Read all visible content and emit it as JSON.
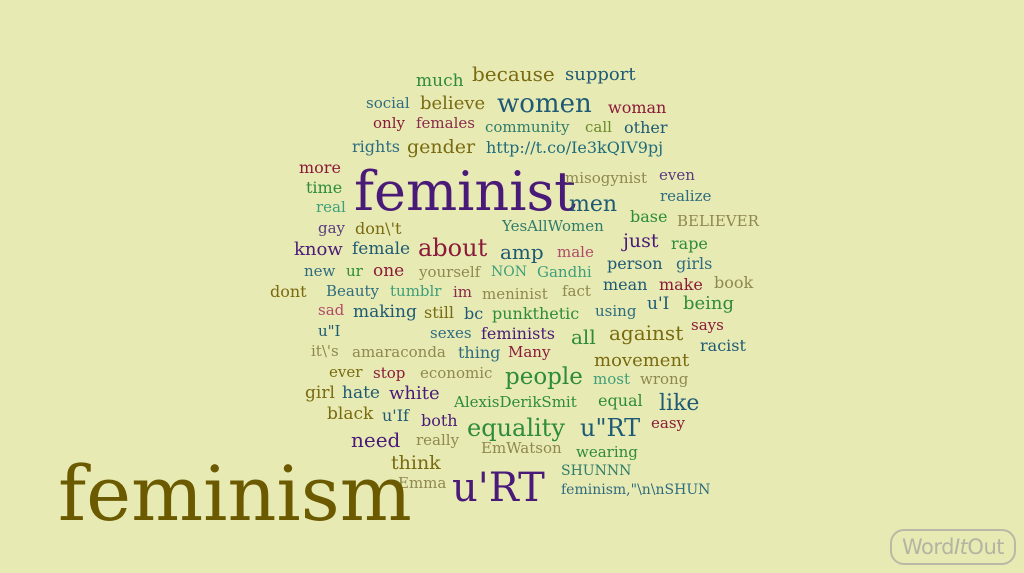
{
  "title": "feminism",
  "logo": {
    "part1": "Word",
    "part2": "It",
    "part3": "Out"
  },
  "colors": {
    "background": "#e7eab3",
    "purple": "#4a1a78",
    "teal": "#1e5a74",
    "green": "#2e8b3a",
    "olive": "#7a6a10",
    "crimson": "#8b1a3a",
    "tan": "#8f8850"
  },
  "words": [
    {
      "text": "much",
      "size": 17,
      "color": "#2e8b3a"
    },
    {
      "text": "because",
      "size": 20,
      "color": "#7a6a10"
    },
    {
      "text": "support",
      "size": 18,
      "color": "#1e5a74"
    },
    {
      "text": "social",
      "size": 15,
      "color": "#2f6c80"
    },
    {
      "text": "believe",
      "size": 18,
      "color": "#7a6a10"
    },
    {
      "text": "women",
      "size": 26,
      "color": "#1e5a74"
    },
    {
      "text": "woman",
      "size": 16,
      "color": "#8b1a3a"
    },
    {
      "text": "only",
      "size": 15,
      "color": "#8b1a3a"
    },
    {
      "text": "females",
      "size": 15,
      "color": "#8b2a4a"
    },
    {
      "text": "community",
      "size": 15,
      "color": "#2f7c6a"
    },
    {
      "text": "call",
      "size": 15,
      "color": "#6a8a2a"
    },
    {
      "text": "other",
      "size": 16,
      "color": "#1e5a74"
    },
    {
      "text": "rights",
      "size": 16,
      "color": "#2f6c80"
    },
    {
      "text": "gender",
      "size": 19,
      "color": "#7a6a10"
    },
    {
      "text": "http://t.co/Ie3kQIV9pj",
      "size": 16,
      "color": "#1e6c7c"
    },
    {
      "text": "more",
      "size": 16,
      "color": "#8b1a3a"
    },
    {
      "text": "time",
      "size": 16,
      "color": "#2e8b3a"
    },
    {
      "text": "real",
      "size": 15,
      "color": "#3f9f7a"
    },
    {
      "text": "feminist",
      "size": 54,
      "color": "#4a1a78"
    },
    {
      "text": "misogynist",
      "size": 15,
      "color": "#8f8850"
    },
    {
      "text": "even",
      "size": 15,
      "color": "#5a3a80"
    },
    {
      "text": "realize",
      "size": 15,
      "color": "#2f6c80"
    },
    {
      "text": "men",
      "size": 22,
      "color": "#1e5a74"
    },
    {
      "text": "gay",
      "size": 15,
      "color": "#5a3a80"
    },
    {
      "text": "don\\'t",
      "size": 16,
      "color": "#7a6a10"
    },
    {
      "text": "YesAllWomen",
      "size": 15,
      "color": "#2f7c6a"
    },
    {
      "text": "base",
      "size": 16,
      "color": "#2e8b3a"
    },
    {
      "text": "BELIEVER",
      "size": 15,
      "color": "#8f8850"
    },
    {
      "text": "know",
      "size": 18,
      "color": "#4a1a78"
    },
    {
      "text": "female",
      "size": 17,
      "color": "#1e5a74"
    },
    {
      "text": "about",
      "size": 24,
      "color": "#8b1a3a"
    },
    {
      "text": "amp",
      "size": 20,
      "color": "#1e5a74"
    },
    {
      "text": "male",
      "size": 15,
      "color": "#b04a6a"
    },
    {
      "text": "just",
      "size": 19,
      "color": "#4a1a78"
    },
    {
      "text": "rape",
      "size": 16,
      "color": "#2e8b3a"
    },
    {
      "text": "new",
      "size": 15,
      "color": "#2f6c80"
    },
    {
      "text": "ur",
      "size": 15,
      "color": "#2e8b3a"
    },
    {
      "text": "one",
      "size": 17,
      "color": "#8b1a3a"
    },
    {
      "text": "yourself",
      "size": 15,
      "color": "#8f8850"
    },
    {
      "text": "NON",
      "size": 14,
      "color": "#3f9f7a"
    },
    {
      "text": "Gandhi",
      "size": 15,
      "color": "#3f9f7a"
    },
    {
      "text": "person",
      "size": 16,
      "color": "#1e5a74"
    },
    {
      "text": "girls",
      "size": 16,
      "color": "#2f6c80"
    },
    {
      "text": "dont",
      "size": 16,
      "color": "#7a6a10"
    },
    {
      "text": "Beauty",
      "size": 15,
      "color": "#2f6c80"
    },
    {
      "text": "tumblr",
      "size": 15,
      "color": "#3f9f7a"
    },
    {
      "text": "im",
      "size": 15,
      "color": "#8b2a4a"
    },
    {
      "text": "meninist",
      "size": 15,
      "color": "#8f8850"
    },
    {
      "text": "fact",
      "size": 15,
      "color": "#8f8850"
    },
    {
      "text": "mean",
      "size": 16,
      "color": "#1e5a74"
    },
    {
      "text": "make",
      "size": 16,
      "color": "#8b1a3a"
    },
    {
      "text": "book",
      "size": 16,
      "color": "#8f8850"
    },
    {
      "text": "sad",
      "size": 15,
      "color": "#b04a6a"
    },
    {
      "text": "making",
      "size": 17,
      "color": "#1e5a74"
    },
    {
      "text": "still",
      "size": 16,
      "color": "#7a6a10"
    },
    {
      "text": "bc",
      "size": 16,
      "color": "#1e5a74"
    },
    {
      "text": "punkthetic",
      "size": 16,
      "color": "#2e8b3a"
    },
    {
      "text": "using",
      "size": 15,
      "color": "#2f6c80"
    },
    {
      "text": "u'I",
      "size": 17,
      "color": "#1e5a74"
    },
    {
      "text": "being",
      "size": 18,
      "color": "#2e8b3a"
    },
    {
      "text": "says",
      "size": 15,
      "color": "#8b1a3a"
    },
    {
      "text": "u\"I",
      "size": 15,
      "color": "#1e5a74"
    },
    {
      "text": "sexes",
      "size": 15,
      "color": "#2f6c80"
    },
    {
      "text": "feminists",
      "size": 16,
      "color": "#4a1a78"
    },
    {
      "text": "all",
      "size": 20,
      "color": "#2e8b3a"
    },
    {
      "text": "against",
      "size": 20,
      "color": "#7a6a10"
    },
    {
      "text": "racist",
      "size": 16,
      "color": "#1e5a74"
    },
    {
      "text": "it\\'s",
      "size": 15,
      "color": "#8f8850"
    },
    {
      "text": "amaraconda",
      "size": 15,
      "color": "#8f8850"
    },
    {
      "text": "thing",
      "size": 16,
      "color": "#2f6c80"
    },
    {
      "text": "Many",
      "size": 15,
      "color": "#8b1a3a"
    },
    {
      "text": "movement",
      "size": 18,
      "color": "#7a6a10"
    },
    {
      "text": "ever",
      "size": 15,
      "color": "#7a6a10"
    },
    {
      "text": "stop",
      "size": 15,
      "color": "#8b1a3a"
    },
    {
      "text": "economic",
      "size": 15,
      "color": "#8f8850"
    },
    {
      "text": "people",
      "size": 23,
      "color": "#2e8b3a"
    },
    {
      "text": "most",
      "size": 15,
      "color": "#3f9f7a"
    },
    {
      "text": "wrong",
      "size": 15,
      "color": "#8f8850"
    },
    {
      "text": "girl",
      "size": 17,
      "color": "#7a6a10"
    },
    {
      "text": "hate",
      "size": 17,
      "color": "#1e5a74"
    },
    {
      "text": "white",
      "size": 18,
      "color": "#4a1a78"
    },
    {
      "text": "AlexisDerikSmit",
      "size": 15,
      "color": "#2e8b3a"
    },
    {
      "text": "equal",
      "size": 16,
      "color": "#2e8b3a"
    },
    {
      "text": "like",
      "size": 22,
      "color": "#1e5a74"
    },
    {
      "text": "black",
      "size": 17,
      "color": "#7a6a10"
    },
    {
      "text": "u'If",
      "size": 16,
      "color": "#1e5a74"
    },
    {
      "text": "both",
      "size": 16,
      "color": "#4a1a78"
    },
    {
      "text": "equality",
      "size": 24,
      "color": "#2e8b3a"
    },
    {
      "text": "u\"RT",
      "size": 24,
      "color": "#1e5a74"
    },
    {
      "text": "easy",
      "size": 15,
      "color": "#8b1a3a"
    },
    {
      "text": "need",
      "size": 20,
      "color": "#4a1a78"
    },
    {
      "text": "really",
      "size": 15,
      "color": "#8f8850"
    },
    {
      "text": "EmWatson",
      "size": 15,
      "color": "#8f8850"
    },
    {
      "text": "wearing",
      "size": 15,
      "color": "#2e8b3a"
    },
    {
      "text": "think",
      "size": 19,
      "color": "#7a6a10"
    },
    {
      "text": "SHUNNN",
      "size": 14,
      "color": "#2f7c6a"
    },
    {
      "text": "Emma",
      "size": 15,
      "color": "#8f8850"
    },
    {
      "text": "u'RT",
      "size": 40,
      "color": "#4a1a78"
    },
    {
      "text": "feminism,\"\\n\\nSHUN",
      "size": 14,
      "color": "#2f6c80"
    }
  ]
}
